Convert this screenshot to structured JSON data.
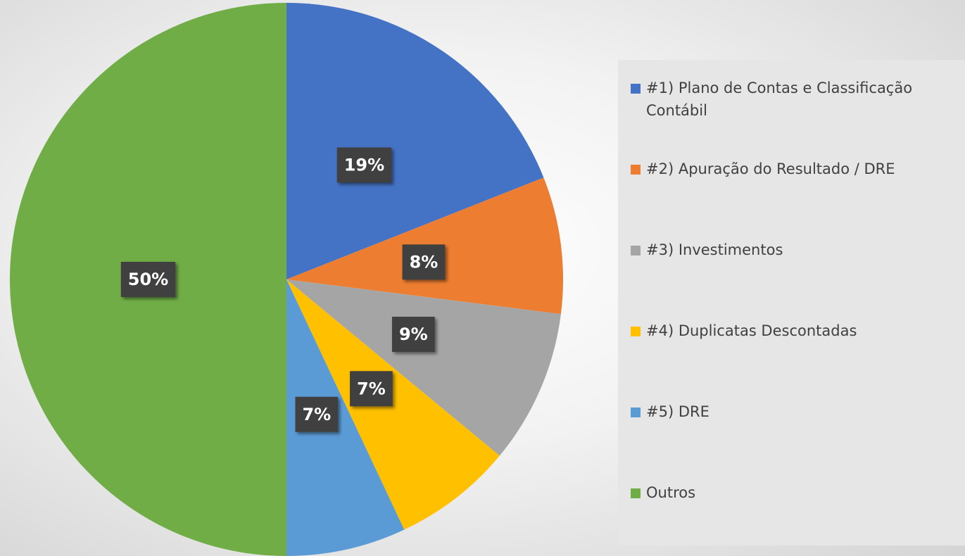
{
  "chart_data": {
    "type": "pie",
    "categories": [
      "#1) Plano de Contas e Classificação Contábil",
      "#2) Apuração do Resultado / DRE",
      "#3) Investimentos",
      "#4) Duplicatas Descontadas",
      "#5) DRE",
      "Outros"
    ],
    "values": [
      19,
      8,
      9,
      7,
      7,
      50
    ],
    "value_labels": [
      "19%",
      "8%",
      "9%",
      "7%",
      "7%",
      "50%"
    ],
    "colors": [
      "#4472c4",
      "#ed7d31",
      "#a5a5a5",
      "#ffc000",
      "#5b9bd5",
      "#70ad47"
    ],
    "legend": "right"
  }
}
